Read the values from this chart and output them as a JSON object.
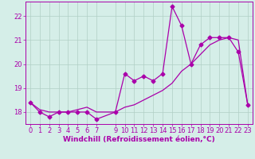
{
  "xlabel": "Windchill (Refroidissement éolien,°C)",
  "bg_color": "#d5eee8",
  "line_color": "#aa00aa",
  "x_data": [
    0,
    1,
    2,
    3,
    4,
    5,
    6,
    7,
    9,
    10,
    11,
    12,
    13,
    14,
    15,
    16,
    17,
    18,
    19,
    20,
    21,
    22,
    23
  ],
  "y_jagged": [
    18.4,
    18.0,
    17.8,
    18.0,
    18.0,
    18.0,
    18.0,
    17.7,
    18.0,
    19.6,
    19.3,
    19.5,
    19.3,
    19.6,
    22.4,
    21.6,
    20.0,
    20.8,
    21.1,
    21.1,
    21.1,
    20.5,
    18.3
  ],
  "y_smooth": [
    18.4,
    18.1,
    18.0,
    18.0,
    18.0,
    18.1,
    18.2,
    18.0,
    18.0,
    18.2,
    18.3,
    18.5,
    18.7,
    18.9,
    19.2,
    19.7,
    20.0,
    20.4,
    20.8,
    21.0,
    21.1,
    21.0,
    18.3
  ],
  "ylim": [
    17.5,
    22.6
  ],
  "xlim": [
    -0.5,
    23.5
  ],
  "yticks": [
    18,
    19,
    20,
    21,
    22
  ],
  "xticks": [
    0,
    1,
    2,
    3,
    4,
    5,
    6,
    7,
    9,
    10,
    11,
    12,
    13,
    14,
    15,
    16,
    17,
    18,
    19,
    20,
    21,
    22,
    23
  ],
  "tick_fontsize": 6,
  "xlabel_fontsize": 6.5,
  "grid_color": "#b0cfc5",
  "marker": "D",
  "markersize": 2.5,
  "linewidth": 0.9
}
